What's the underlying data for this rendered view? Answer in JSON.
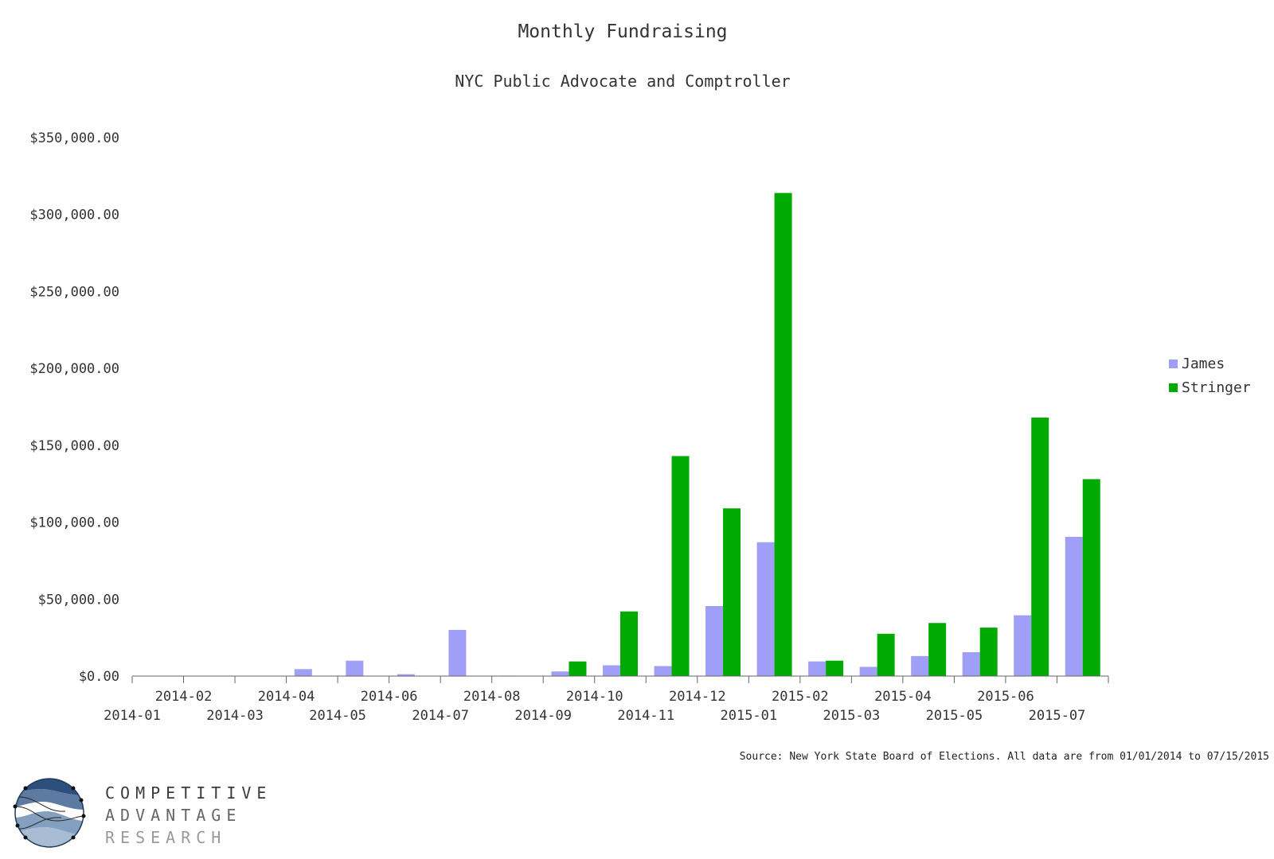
{
  "chart_data": {
    "type": "bar",
    "title": "Monthly Fundraising",
    "subtitle": "NYC Public Advocate and Comptroller",
    "categories": [
      "2014-01",
      "2014-02",
      "2014-03",
      "2014-04",
      "2014-05",
      "2014-06",
      "2014-07",
      "2014-08",
      "2014-09",
      "2014-10",
      "2014-11",
      "2014-12",
      "2015-01",
      "2015-02",
      "2015-03",
      "2015-04",
      "2015-05",
      "2015-06",
      "2015-07"
    ],
    "series": [
      {
        "name": "James",
        "color": "#9f9ff7",
        "values": [
          0,
          0,
          0,
          4500,
          10000,
          1200,
          30000,
          300,
          3000,
          7000,
          6500,
          45500,
          87000,
          9500,
          6000,
          13000,
          15500,
          39500,
          90500
        ]
      },
      {
        "name": "Stringer",
        "color": "#00aa00",
        "values": [
          0,
          0,
          0,
          0,
          0,
          0,
          0,
          0,
          9500,
          42000,
          143000,
          109000,
          314000,
          10000,
          27500,
          34500,
          31500,
          168000,
          128000
        ]
      }
    ],
    "y_ticks": [
      "$0.00",
      "$50,000.00",
      "$100,000.00",
      "$150,000.00",
      "$200,000.00",
      "$250,000.00",
      "$300,000.00",
      "$350,000.00"
    ],
    "ylim": [
      0,
      350000
    ],
    "grid": false,
    "legend_position": "right"
  },
  "source_note": "Source: New York State Board of Elections.  All data are from 01/01/2014 to 07/15/2015",
  "branding": {
    "line1": "COMPETITIVE",
    "line2": "ADVANTAGE",
    "line3": "RESEARCH",
    "logo_icon": "globe-wave-logo-icon"
  }
}
